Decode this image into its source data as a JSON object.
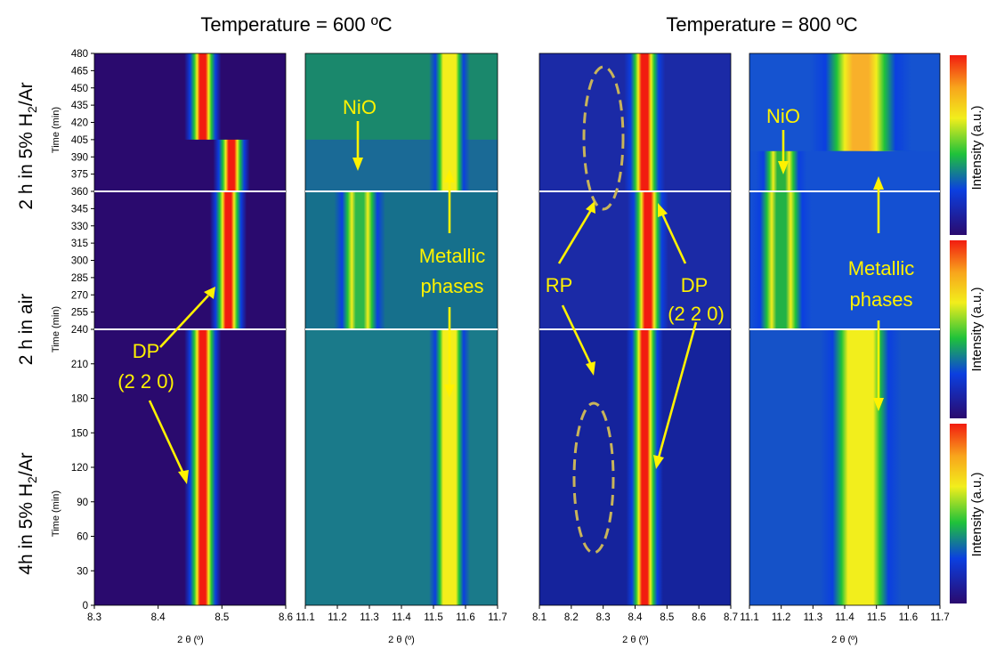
{
  "figure": {
    "column_titles": [
      "Temperature = 600 ºC",
      "Temperature = 800 ºC"
    ],
    "row_labels": [
      {
        "text": "2 h in 5% H",
        "sub": "2",
        "tail": "/Ar",
        "color": "#c00000"
      },
      {
        "text": "2 h in air",
        "sub": "",
        "tail": "",
        "color": "#222222"
      },
      {
        "text": "4h in 5% H",
        "sub": "2",
        "tail": "/Ar",
        "color": "#c00000"
      }
    ],
    "y_label": "Time (min)",
    "x_label": "2 θ (º)",
    "colorbar_label": "Intensity (a.u.)",
    "colors": {
      "low": "#2a0a6e",
      "mid": "#0b3fe0",
      "green": "#1fc23a",
      "yellow": "#f2ee1c",
      "high": "#f21c10",
      "annotation": "#fff200",
      "ellipse": "#c8b45a"
    }
  },
  "chart_data": {
    "type": "heatmap",
    "panels": [
      {
        "id": "dp-600",
        "x_range": [
          8.3,
          8.6
        ],
        "x_ticks": [
          "8.3",
          "8.4",
          "8.5",
          "8.6"
        ]
      },
      {
        "id": "ni-600",
        "x_range": [
          11.1,
          11.7
        ],
        "x_ticks": [
          "11.1",
          "11.2",
          "11.3",
          "11.4",
          "11.5",
          "11.6",
          "11.7"
        ]
      },
      {
        "id": "dp-800",
        "x_range": [
          8.1,
          8.7
        ],
        "x_ticks": [
          "8.1",
          "8.2",
          "8.3",
          "8.4",
          "8.5",
          "8.6",
          "8.7"
        ]
      },
      {
        "id": "ni-800",
        "x_range": [
          11.1,
          11.7
        ],
        "x_ticks": [
          "11.1",
          "11.2",
          "11.3",
          "11.4",
          "11.5",
          "11.6",
          "11.7"
        ]
      }
    ],
    "y_range": [
      0,
      480
    ],
    "y_ticks": [
      "0",
      "30",
      "60",
      "90",
      "120",
      "150",
      "180",
      "210",
      "240",
      "255",
      "270",
      "285",
      "300",
      "315",
      "330",
      "345",
      "360",
      "375",
      "390",
      "405",
      "420",
      "435",
      "450",
      "465",
      "480"
    ],
    "segments": [
      {
        "label": "4h in 5% H2/Ar",
        "t_range": [
          0,
          240
        ]
      },
      {
        "label": "2 h in air",
        "t_range": [
          240,
          360
        ]
      },
      {
        "label": "2 h in 5% H2/Ar",
        "t_range": [
          360,
          480
        ]
      }
    ],
    "peak_positions": {
      "dp_600_reduced_4h": 8.47,
      "dp_600_oxidized": 8.51,
      "dp_600_reduced_2h": 8.47,
      "dp_800": 8.43,
      "nio": [
        11.27,
        11.2
      ],
      "metallic": [
        11.55,
        11.5
      ]
    },
    "annotations": [
      {
        "text": "NiO",
        "panel": "ni-600"
      },
      {
        "text": "Metallic",
        "panel": "ni-600"
      },
      {
        "text": "phases",
        "panel": "ni-600"
      },
      {
        "text": "DP",
        "panel": "dp-600"
      },
      {
        "text": "(2 2 0)",
        "panel": "dp-600"
      },
      {
        "text": "RP",
        "panel": "dp-800"
      },
      {
        "text": "DP",
        "panel": "dp-800"
      },
      {
        "text": "(2 2 0)",
        "panel": "dp-800"
      },
      {
        "text": "NiO",
        "panel": "ni-800"
      },
      {
        "text": "Metallic",
        "panel": "ni-800"
      },
      {
        "text": "phases",
        "panel": "ni-800"
      }
    ]
  }
}
